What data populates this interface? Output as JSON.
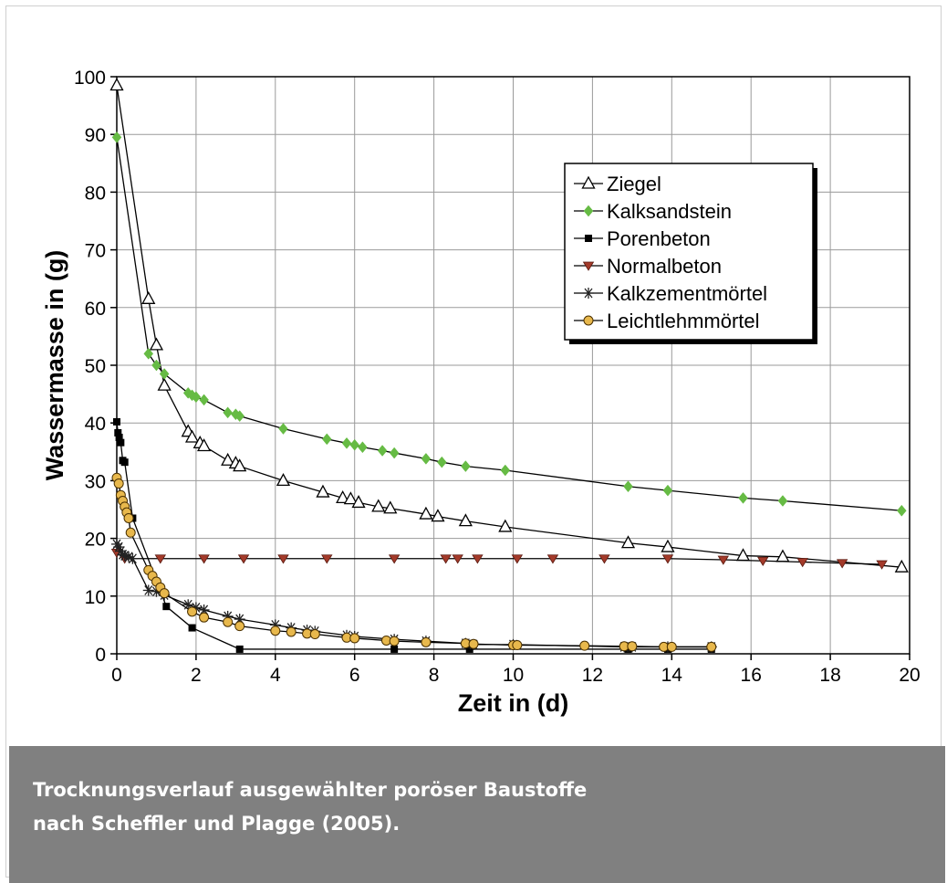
{
  "caption": {
    "line1": "Trocknungsverlauf ausgewählter poröser Baustoffe",
    "line2": "nach Scheffler und Plagge (2005)."
  },
  "colors": {
    "caption_bg": "#808080",
    "caption_text": "#ffffff",
    "Ziegel": "#000000",
    "Kalksandstein": "#66bb44",
    "Porenbeton": "#000000",
    "Normalbeton": "#a33a2a",
    "Kalkzementmörtel": "#333333",
    "Leichtlehmmörtel": "#e8b84c"
  },
  "chart_data": {
    "type": "line",
    "title": "",
    "xlabel": "Zeit in (d)",
    "ylabel": "Wassermasse in (g)",
    "xlim": [
      0,
      20
    ],
    "ylim": [
      0,
      100
    ],
    "xticks": [
      "0",
      "2",
      "4",
      "6",
      "8",
      "10",
      "12",
      "14",
      "16",
      "18",
      "20"
    ],
    "yticks": [
      "0",
      "10",
      "20",
      "30",
      "40",
      "50",
      "60",
      "70",
      "80",
      "90",
      "100"
    ],
    "grid": true,
    "legend": "top-right",
    "series": [
      {
        "name": "Ziegel",
        "marker": "triangle-open",
        "x": [
          0,
          0.8,
          1.0,
          1.2,
          1.8,
          1.9,
          2.1,
          2.2,
          2.8,
          3.0,
          3.1,
          4.2,
          5.2,
          5.7,
          5.9,
          6.1,
          6.6,
          6.9,
          7.8,
          8.1,
          8.8,
          9.8,
          12.9,
          13.9,
          15.8,
          16.8,
          19.8
        ],
        "y": [
          98.5,
          61.5,
          53.5,
          46.5,
          38.5,
          37.5,
          36.5,
          36,
          33.5,
          33,
          32.5,
          30,
          28,
          27,
          26.8,
          26.2,
          25.5,
          25.2,
          24.2,
          23.8,
          23,
          22,
          19.2,
          18.5,
          17,
          16.8,
          15
        ]
      },
      {
        "name": "Kalksandstein",
        "marker": "diamond",
        "x": [
          0,
          0.8,
          1.0,
          1.2,
          1.8,
          1.9,
          2.0,
          2.2,
          2.8,
          3.0,
          3.1,
          4.2,
          5.3,
          5.8,
          6.0,
          6.2,
          6.7,
          7.0,
          7.8,
          8.2,
          8.8,
          9.8,
          12.9,
          13.9,
          15.8,
          16.8,
          19.8
        ],
        "y": [
          89.5,
          52,
          50,
          48.5,
          45.2,
          44.8,
          44.5,
          44,
          41.8,
          41.5,
          41.2,
          39,
          37.2,
          36.5,
          36.2,
          35.8,
          35.2,
          34.8,
          33.8,
          33.2,
          32.5,
          31.8,
          29,
          28.3,
          27,
          26.5,
          24.8
        ]
      },
      {
        "name": "Porenbeton",
        "marker": "square",
        "x": [
          0,
          0.03,
          0.06,
          0.1,
          0.15,
          0.2,
          0.4,
          1.25,
          1.9,
          3.1,
          7.0,
          8.9,
          12.9,
          13.9,
          15.0
        ],
        "y": [
          40.2,
          38.3,
          37.5,
          36.6,
          33.5,
          33.2,
          23.5,
          8.2,
          4.5,
          0.8,
          0.8,
          0.8,
          0.8,
          0.8,
          0.8
        ]
      },
      {
        "name": "Normalbeton",
        "marker": "triangle-down",
        "x": [
          0,
          0.2,
          1.1,
          2.2,
          3.2,
          4.2,
          5.3,
          7.0,
          8.3,
          8.6,
          9.1,
          10.1,
          11.0,
          12.3,
          13.9,
          15.3,
          16.3,
          17.3,
          18.3,
          19.3
        ],
        "y": [
          17.5,
          16.5,
          16.5,
          16.5,
          16.5,
          16.5,
          16.5,
          16.5,
          16.5,
          16.5,
          16.5,
          16.5,
          16.5,
          16.5,
          16.5,
          16.3,
          16.1,
          15.9,
          15.7,
          15.5
        ]
      },
      {
        "name": "Kalkzementmörtel",
        "marker": "asterisk",
        "x": [
          0,
          0.05,
          0.1,
          0.15,
          0.2,
          0.3,
          0.4,
          0.8,
          1.0,
          1.2,
          1.8,
          2.0,
          2.2,
          2.8,
          3.1,
          4.0,
          4.4,
          4.8,
          5.0,
          5.8,
          6.0,
          7.0,
          7.8,
          8.8,
          9.0,
          10.0,
          12.8,
          13.0,
          13.9,
          15.0
        ],
        "y": [
          19,
          18.5,
          17.8,
          17.2,
          17,
          16.8,
          16.5,
          11,
          10.8,
          10.2,
          8.5,
          8.0,
          7.6,
          6.5,
          6.0,
          5.0,
          4.5,
          4.1,
          3.9,
          3.2,
          3.0,
          2.5,
          2.2,
          1.8,
          1.6,
          1.6,
          1.2,
          1.2,
          1.2,
          1.2
        ]
      },
      {
        "name": "Leichtlehmmörtel",
        "marker": "circle",
        "x": [
          0,
          0.05,
          0.1,
          0.15,
          0.2,
          0.25,
          0.3,
          0.35,
          0.8,
          0.9,
          1.0,
          1.1,
          1.2,
          1.9,
          2.2,
          2.8,
          3.1,
          4.0,
          4.4,
          4.8,
          5.0,
          5.8,
          6.0,
          6.8,
          7.0,
          7.8,
          8.8,
          9.0,
          10.0,
          10.1,
          11.8,
          12.8,
          13.0,
          13.8,
          14.0,
          15.0
        ],
        "y": [
          30.5,
          29.5,
          27.5,
          26.5,
          25.5,
          24.5,
          23.5,
          21,
          14.5,
          13.5,
          12.5,
          11.5,
          10.5,
          7.3,
          6.3,
          5.5,
          4.8,
          4.0,
          3.8,
          3.5,
          3.4,
          2.8,
          2.7,
          2.3,
          2.2,
          2.0,
          1.8,
          1.7,
          1.5,
          1.5,
          1.4,
          1.3,
          1.3,
          1.2,
          1.2,
          1.2
        ]
      }
    ]
  }
}
